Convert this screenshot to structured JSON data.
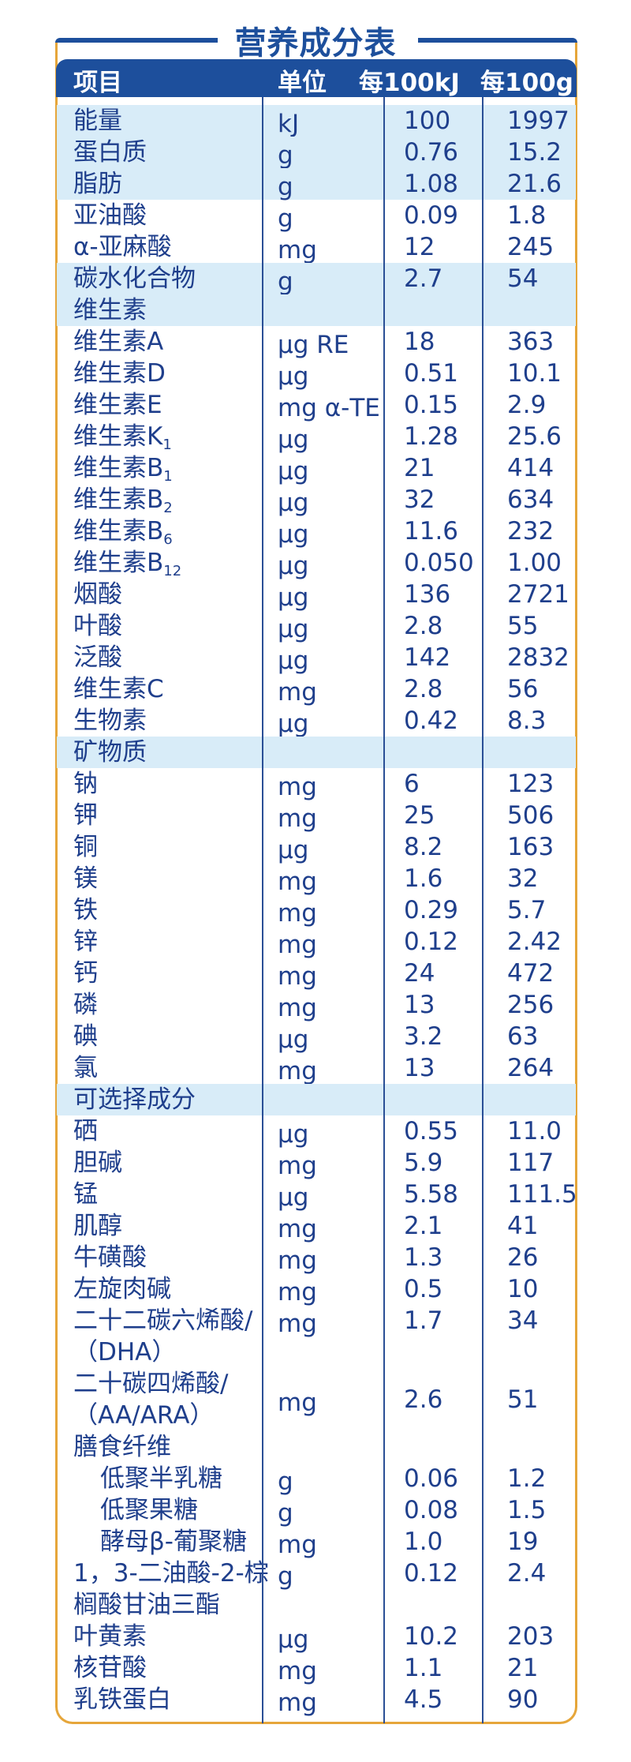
{
  "title": "营养成分表",
  "colors": {
    "header_blue": "#1d4f9c",
    "text_blue": "#1f3f8c",
    "shade": "#d8ecf8",
    "border_orange": "#e6a63a"
  },
  "header": {
    "item": "项目",
    "unit": "单位",
    "per_kj": "每100kJ",
    "per_g": "每100g"
  },
  "rows": [
    {
      "name": "能量",
      "unit": "kJ",
      "v1": "100",
      "v2": "1997",
      "shade": true
    },
    {
      "name": "蛋白质",
      "unit": "g",
      "v1": "0.76",
      "v2": "15.2",
      "shade": true
    },
    {
      "name": "脂肪",
      "unit": "g",
      "v1": "1.08",
      "v2": "21.6",
      "shade": true
    },
    {
      "name": "亚油酸",
      "unit": "g",
      "v1": "0.09",
      "v2": "1.8"
    },
    {
      "name": "α-亚麻酸",
      "unit": "mg",
      "v1": "12",
      "v2": "245"
    },
    {
      "name": "碳水化合物",
      "unit": "g",
      "v1": "2.7",
      "v2": "54",
      "shade": true
    },
    {
      "name": "维生素",
      "shade": true
    },
    {
      "name": "维生素A",
      "unit": "μg RE",
      "v1": "18",
      "v2": "363"
    },
    {
      "name": "维生素D",
      "unit": "μg",
      "v1": "0.51",
      "v2": "10.1"
    },
    {
      "name": "维生素E",
      "unit": "mg α-TE",
      "v1": "0.15",
      "v2": "2.9"
    },
    {
      "name": "维生素K",
      "sub": "1",
      "unit": "μg",
      "v1": "1.28",
      "v2": "25.6"
    },
    {
      "name": "维生素B",
      "sub": "1",
      "unit": "μg",
      "v1": "21",
      "v2": "414"
    },
    {
      "name": "维生素B",
      "sub": "2",
      "unit": "μg",
      "v1": "32",
      "v2": "634"
    },
    {
      "name": "维生素B",
      "sub": "6",
      "unit": "μg",
      "v1": "11.6",
      "v2": "232"
    },
    {
      "name": "维生素B",
      "sub": "12",
      "unit": "μg",
      "v1": "0.050",
      "v2": "1.00"
    },
    {
      "name": "烟酸",
      "unit": "μg",
      "v1": "136",
      "v2": "2721"
    },
    {
      "name": "叶酸",
      "unit": "μg",
      "v1": "2.8",
      "v2": "55"
    },
    {
      "name": "泛酸",
      "unit": "μg",
      "v1": "142",
      "v2": "2832"
    },
    {
      "name": "维生素C",
      "unit": "mg",
      "v1": "2.8",
      "v2": "56"
    },
    {
      "name": "生物素",
      "unit": "μg",
      "v1": "0.42",
      "v2": "8.3"
    },
    {
      "name": "矿物质",
      "shade": true
    },
    {
      "name": "钠",
      "unit": "mg",
      "v1": "6",
      "v2": "123"
    },
    {
      "name": "钾",
      "unit": "mg",
      "v1": "25",
      "v2": "506"
    },
    {
      "name": "铜",
      "unit": "μg",
      "v1": "8.2",
      "v2": "163"
    },
    {
      "name": "镁",
      "unit": "mg",
      "v1": "1.6",
      "v2": "32"
    },
    {
      "name": "铁",
      "unit": "mg",
      "v1": "0.29",
      "v2": "5.7"
    },
    {
      "name": "锌",
      "unit": "mg",
      "v1": "0.12",
      "v2": "2.42"
    },
    {
      "name": "钙",
      "unit": "mg",
      "v1": "24",
      "v2": "472"
    },
    {
      "name": "磷",
      "unit": "mg",
      "v1": "13",
      "v2": "256"
    },
    {
      "name": "碘",
      "unit": "μg",
      "v1": "3.2",
      "v2": "63"
    },
    {
      "name": "氯",
      "unit": "mg",
      "v1": "13",
      "v2": "264"
    },
    {
      "name": "可选择成分",
      "shade": true
    },
    {
      "name": "硒",
      "unit": "μg",
      "v1": "0.55",
      "v2": "11.0"
    },
    {
      "name": "胆碱",
      "unit": "mg",
      "v1": "5.9",
      "v2": "117"
    },
    {
      "name": "锰",
      "unit": "μg",
      "v1": "5.58",
      "v2": "111.5"
    },
    {
      "name": "肌醇",
      "unit": "mg",
      "v1": "2.1",
      "v2": "41"
    },
    {
      "name": "牛磺酸",
      "unit": "mg",
      "v1": "1.3",
      "v2": "26"
    },
    {
      "name": "左旋肉碱",
      "unit": "mg",
      "v1": "0.5",
      "v2": "10"
    },
    {
      "name": "二十二碳六烯酸/",
      "name2": "（DHA）",
      "unit": "mg",
      "v1": "1.7",
      "v2": "34"
    },
    {
      "name": "二十碳四烯酸/",
      "name2": "（AA/ARA）",
      "unit": "mg",
      "v1": "2.6",
      "v2": "51",
      "mid": true
    },
    {
      "name": "膳食纤维"
    },
    {
      "name": "低聚半乳糖",
      "indent": true,
      "unit": "g",
      "v1": "0.06",
      "v2": "1.2"
    },
    {
      "name": "低聚果糖",
      "indent": true,
      "unit": "g",
      "v1": "0.08",
      "v2": "1.5"
    },
    {
      "name": "酵母β-葡聚糖",
      "indent": true,
      "unit": "mg",
      "v1": "1.0",
      "v2": "19"
    },
    {
      "name": "1，3-二油酸-2-棕",
      "name2": "榈酸甘油三酯",
      "unit": "g",
      "v1": "0.12",
      "v2": "2.4"
    },
    {
      "name": "叶黄素",
      "unit": "μg",
      "v1": "10.2",
      "v2": "203"
    },
    {
      "name": "核苷酸",
      "unit": "mg",
      "v1": "1.1",
      "v2": "21"
    },
    {
      "name": "乳铁蛋白",
      "unit": "mg",
      "v1": "4.5",
      "v2": "90"
    }
  ]
}
